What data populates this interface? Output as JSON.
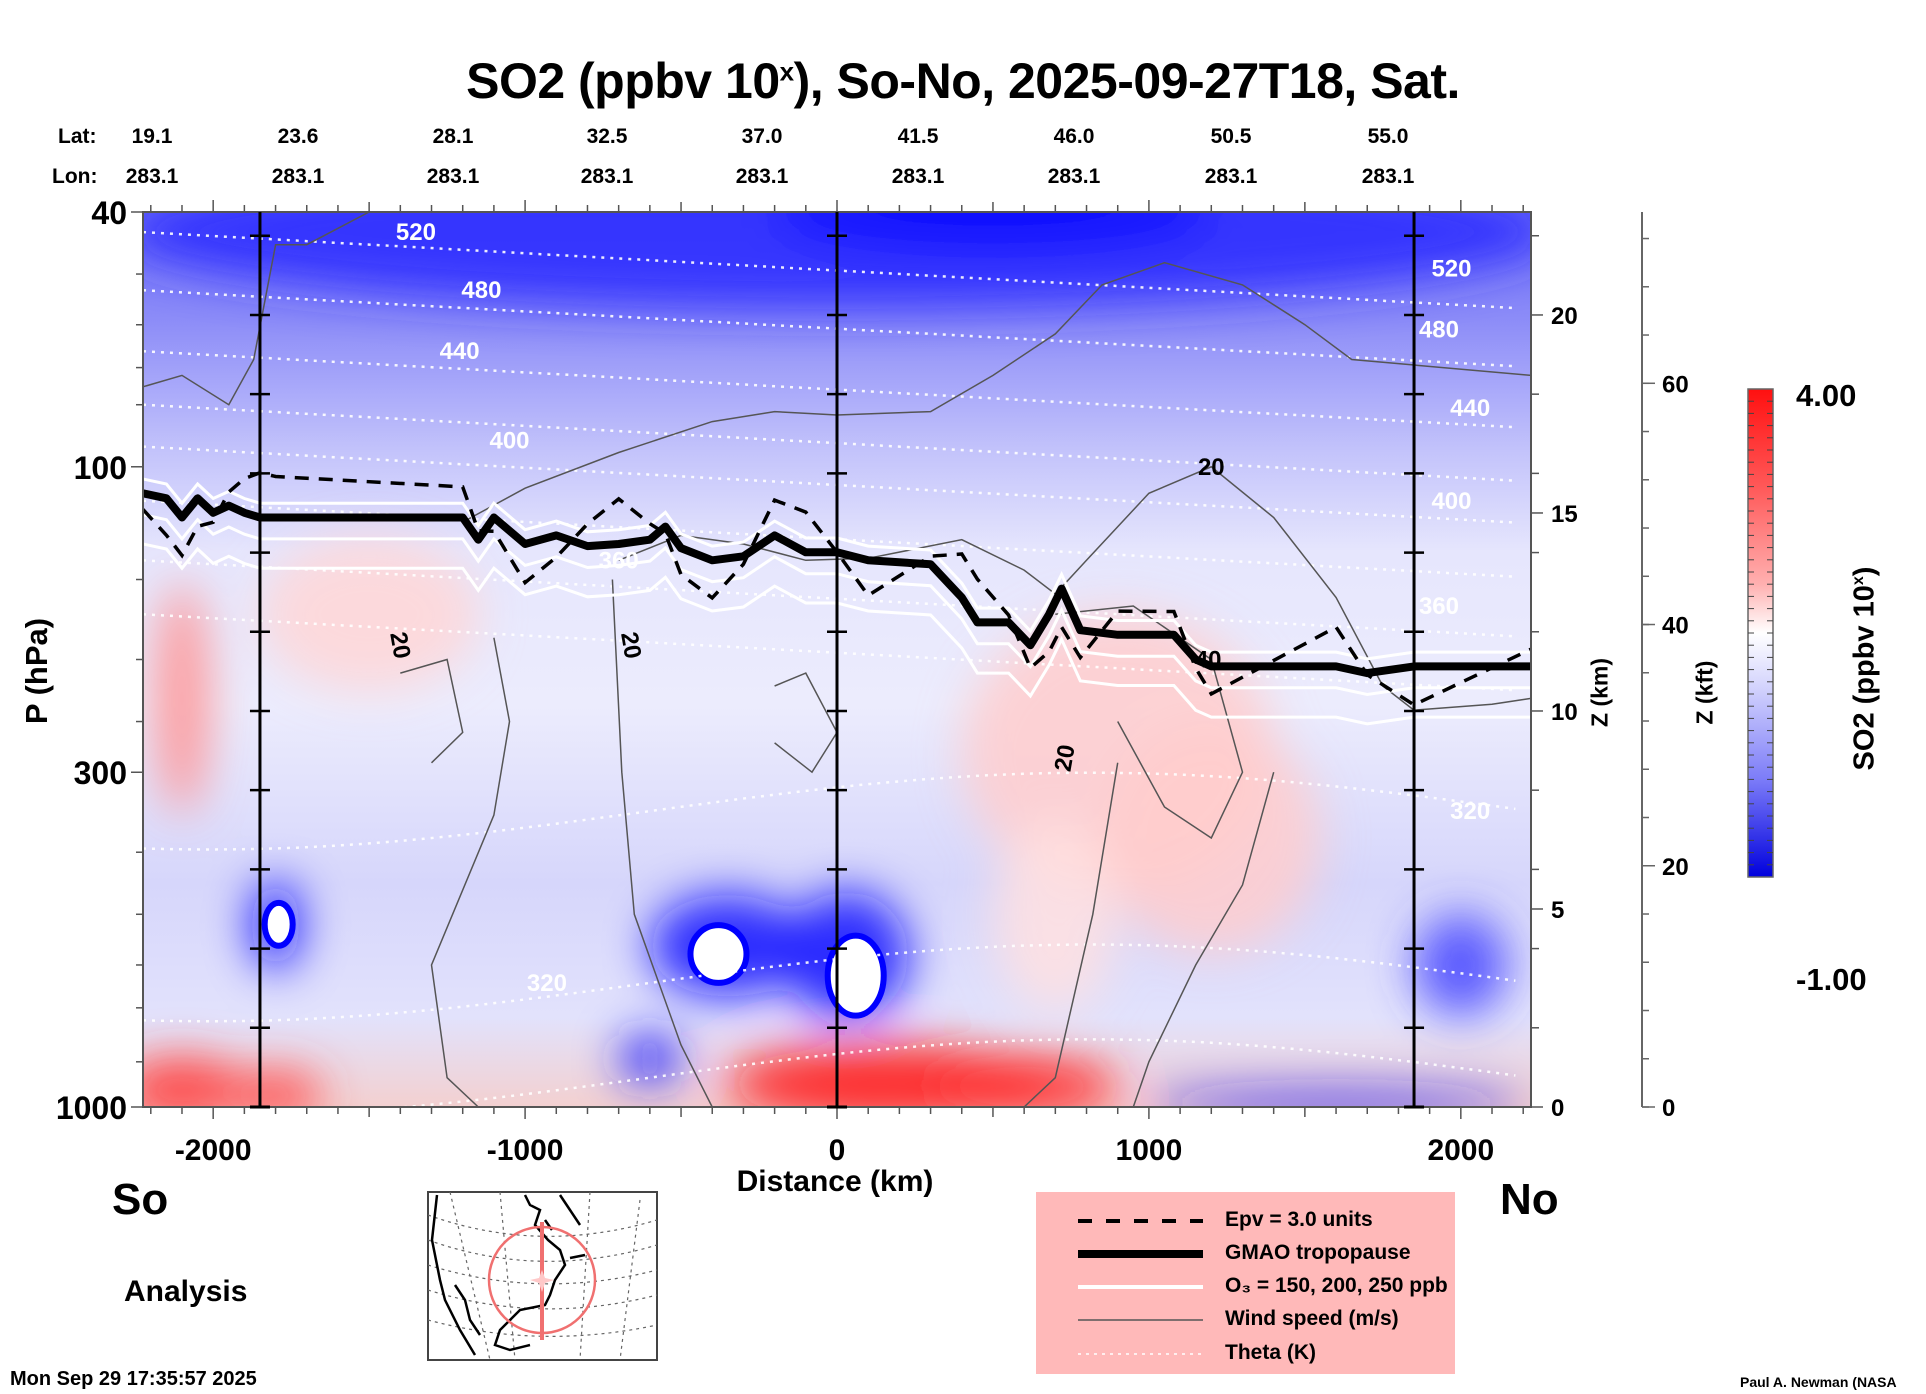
{
  "title": {
    "prefix": "SO2 (ppbv 10",
    "sup": "x",
    "suffix": "), So-No, 2025-09-27T18, Sat."
  },
  "lat_label": "Lat:",
  "lon_label": "Lon:",
  "stations": [
    {
      "lat": "19.1",
      "lon": "283.1"
    },
    {
      "lat": "23.6",
      "lon": "283.1"
    },
    {
      "lat": "28.1",
      "lon": "283.1"
    },
    {
      "lat": "32.5",
      "lon": "283.1"
    },
    {
      "lat": "37.0",
      "lon": "283.1"
    },
    {
      "lat": "41.5",
      "lon": "283.1"
    },
    {
      "lat": "46.0",
      "lon": "283.1"
    },
    {
      "lat": "50.5",
      "lon": "283.1"
    },
    {
      "lat": "55.0",
      "lon": "283.1"
    }
  ],
  "labels": {
    "so": "So",
    "no": "No",
    "analysis": "Analysis",
    "timestamp": "Mon Sep 29 17:35:57 2025",
    "credit": "Paul A. Newman (NASA"
  },
  "legend": {
    "items": [
      {
        "style": "dashed",
        "label": "Epv = 3.0 units"
      },
      {
        "style": "thick",
        "label": "GMAO tropopause"
      },
      {
        "style": "white",
        "label": "O₃ = 150, 200, 250 ppb"
      },
      {
        "style": "thin",
        "label": "Wind speed (m/s)"
      },
      {
        "style": "dotted",
        "label": "Theta (K)"
      }
    ]
  },
  "colors": {
    "high": "#ff0000",
    "mid": "#ffffff",
    "low": "#0000ff",
    "legend_bg": "#ffb9b9",
    "map_track": "#f07070"
  },
  "chart_data": {
    "type": "heatmap",
    "title": "SO2 (ppbv 10^x), So-No, 2025-09-27T18, Sat.",
    "xlabel": "Distance (km)",
    "ylabel": "P (hPa)",
    "y2label": "Z (km)",
    "y3label": "Z (kft)",
    "colorbar_label": "SO2 (ppbv 10^x)",
    "xlim": [
      -2225,
      2225
    ],
    "ylim": [
      1000,
      40
    ],
    "yscale": "log",
    "x_ticks": [
      -2000,
      -1000,
      0,
      1000,
      2000
    ],
    "x_tick_labels": [
      "-2000",
      "-1000",
      "0",
      "1000",
      "2000"
    ],
    "y_ticks": [
      40,
      100,
      300,
      1000
    ],
    "y_tick_labels": [
      "40",
      "100",
      "300",
      "1000"
    ],
    "z_km_ticks": [
      0,
      5,
      10,
      15,
      20
    ],
    "z_kft_ticks": [
      0,
      20,
      40,
      60
    ],
    "colorbar_range": [
      -1.0,
      4.0
    ],
    "colorbar_tick_labels": [
      "4.00",
      "-1.00"
    ],
    "station_distances_km": [
      -1850,
      0,
      1850
    ],
    "theta_labels": [
      {
        "value": "520",
        "x": -1350,
        "p": 43
      },
      {
        "value": "480",
        "x": -1140,
        "p": 53
      },
      {
        "value": "440",
        "x": -1210,
        "p": 66
      },
      {
        "value": "400",
        "x": -1050,
        "p": 91
      },
      {
        "value": "360",
        "x": -700,
        "p": 140
      },
      {
        "value": "320",
        "x": -930,
        "p": 640
      },
      {
        "value": "520",
        "x": 1970,
        "p": 49
      },
      {
        "value": "480",
        "x": 1930,
        "p": 61
      },
      {
        "value": "440",
        "x": 2030,
        "p": 81
      },
      {
        "value": "400",
        "x": 1970,
        "p": 113
      },
      {
        "value": "360",
        "x": 1930,
        "p": 165
      },
      {
        "value": "320",
        "x": 2030,
        "p": 345
      }
    ],
    "wind_labels": [
      {
        "value": "20",
        "x": 1200,
        "p": 100
      },
      {
        "value": "20",
        "x": -1400,
        "p": 190
      },
      {
        "value": "20",
        "x": -660,
        "p": 190
      },
      {
        "value": "20",
        "x": 730,
        "p": 285
      },
      {
        "value": "40",
        "x": 1190,
        "p": 200
      }
    ],
    "field_blobs": [
      {
        "x": -2100,
        "p": 230,
        "rx": 90,
        "ry": 0.18,
        "v": 2.6
      },
      {
        "x": -1500,
        "p": 170,
        "rx": 350,
        "ry": 0.12,
        "v": 1.9
      },
      {
        "x": -2100,
        "p": 940,
        "rx": 200,
        "ry": 0.05,
        "v": 3.5
      },
      {
        "x": -1800,
        "p": 960,
        "rx": 150,
        "ry": 0.04,
        "v": 3.3
      },
      {
        "x": 150,
        "p": 920,
        "rx": 500,
        "ry": 0.06,
        "v": 3.9
      },
      {
        "x": 600,
        "p": 930,
        "rx": 300,
        "ry": 0.05,
        "v": 3.6
      },
      {
        "x": 900,
        "p": 280,
        "rx": 500,
        "ry": 0.22,
        "v": 2.0
      },
      {
        "x": 1200,
        "p": 380,
        "rx": 350,
        "ry": 0.18,
        "v": 2.0
      },
      {
        "x": 700,
        "p": 500,
        "rx": 200,
        "ry": 0.15,
        "v": 1.8
      },
      {
        "x": 0,
        "p": 43,
        "rx": 2300,
        "ry": 0.12,
        "v": -0.6
      },
      {
        "x": 500,
        "p": 40,
        "rx": 700,
        "ry": 0.06,
        "v": -0.95
      },
      {
        "x": -1800,
        "p": 520,
        "rx": 80,
        "ry": 0.07,
        "v": -0.9
      },
      {
        "x": -350,
        "p": 560,
        "rx": 250,
        "ry": 0.08,
        "v": -0.9
      },
      {
        "x": 30,
        "p": 580,
        "rx": 200,
        "ry": 0.1,
        "v": -0.9
      },
      {
        "x": -600,
        "p": 840,
        "rx": 100,
        "ry": 0.04,
        "v": -0.7
      },
      {
        "x": 1600,
        "p": 990,
        "rx": 600,
        "ry": 0.02,
        "v": -0.8
      },
      {
        "x": 2000,
        "p": 600,
        "rx": 150,
        "ry": 0.08,
        "v": -0.3
      }
    ],
    "tropopause": [
      [
        -2225,
        110
      ],
      [
        -2150,
        112
      ],
      [
        -2100,
        120
      ],
      [
        -2050,
        112
      ],
      [
        -2000,
        118
      ],
      [
        -1950,
        115
      ],
      [
        -1900,
        118
      ],
      [
        -1850,
        120
      ],
      [
        -1800,
        120
      ],
      [
        -1200,
        120
      ],
      [
        -1150,
        130
      ],
      [
        -1100,
        120
      ],
      [
        -1000,
        132
      ],
      [
        -900,
        128
      ],
      [
        -800,
        133
      ],
      [
        -700,
        132
      ],
      [
        -600,
        130
      ],
      [
        -550,
        124
      ],
      [
        -500,
        134
      ],
      [
        -400,
        140
      ],
      [
        -300,
        138
      ],
      [
        -200,
        128
      ],
      [
        -100,
        136
      ],
      [
        0,
        136
      ],
      [
        100,
        140
      ],
      [
        300,
        142
      ],
      [
        400,
        160
      ],
      [
        450,
        175
      ],
      [
        550,
        175
      ],
      [
        620,
        190
      ],
      [
        680,
        170
      ],
      [
        720,
        155
      ],
      [
        780,
        180
      ],
      [
        900,
        183
      ],
      [
        1080,
        183
      ],
      [
        1150,
        200
      ],
      [
        1200,
        205
      ],
      [
        1600,
        205
      ],
      [
        1700,
        210
      ],
      [
        1850,
        205
      ],
      [
        2225,
        205
      ]
    ]
  }
}
